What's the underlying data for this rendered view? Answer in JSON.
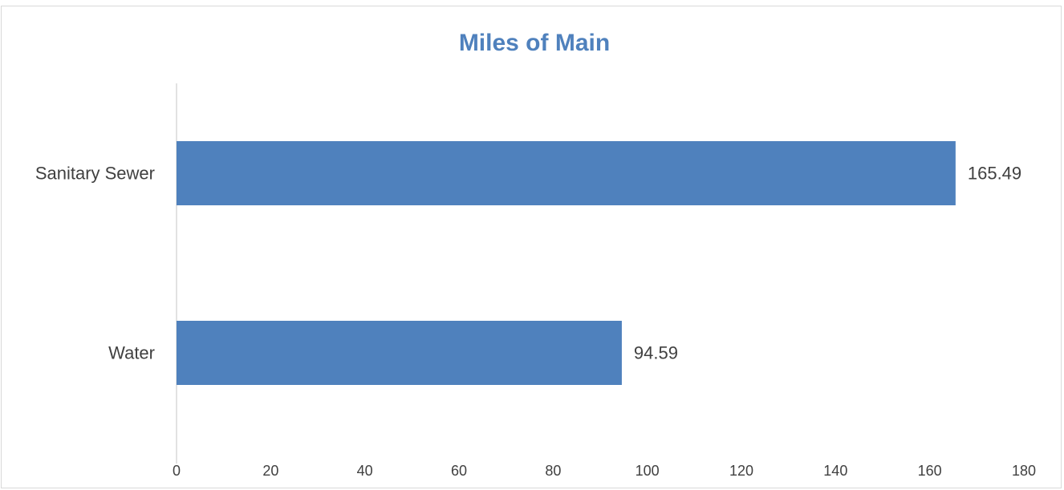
{
  "chart_data": {
    "type": "bar",
    "orientation": "horizontal",
    "title": "Miles of Main",
    "categories": [
      "Sanitary Sewer",
      "Water"
    ],
    "values": [
      165.49,
      94.59
    ],
    "data_labels": [
      "165.49",
      "94.59"
    ],
    "xlim": [
      0,
      180
    ],
    "x_ticks": [
      0,
      20,
      40,
      60,
      80,
      100,
      120,
      140,
      160,
      180
    ],
    "x_tick_labels": [
      "0",
      "20",
      "40",
      "60",
      "80",
      "100",
      "120",
      "140",
      "160",
      "180"
    ],
    "grid": false,
    "legend": "none",
    "colors": {
      "bar": "#4f81bd",
      "title": "#4f81bd",
      "axis": "#d9d9d9",
      "text": "#404040"
    }
  }
}
